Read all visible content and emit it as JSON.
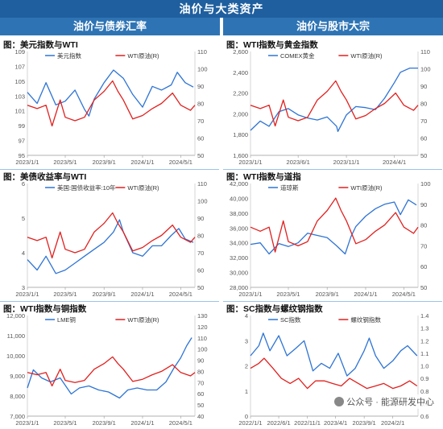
{
  "page": {
    "main_title": "油价与大类资产",
    "left_header": "油价与债券汇率",
    "right_header": "油价与股市大宗",
    "watermark": "公众号 · 能源研发中心"
  },
  "colors": {
    "blue": "#2e74d4",
    "red": "#e0201e",
    "axis": "#555555",
    "header": "#2e74b5"
  },
  "chart_data": [
    {
      "id": "usd-wti",
      "title": "图：美元指数与WTI",
      "type": "line",
      "x_ticks": [
        "2023/1/1",
        "2023/5/1",
        "2023/9/1",
        "2024/1/1",
        "2024/5/1"
      ],
      "x_range": [
        "2023-01-01",
        "2024-06-15"
      ],
      "left_axis": {
        "ticks": [
          "109",
          "107",
          "105",
          "103",
          "101",
          "99",
          "97",
          "95"
        ],
        "range": [
          95,
          109
        ]
      },
      "right_axis": {
        "ticks": [
          "110",
          "100",
          "90",
          "80",
          "70",
          "60",
          "50"
        ],
        "range": [
          50,
          110
        ]
      },
      "series": [
        {
          "name": "美元指数",
          "axis": "left",
          "color": "#2e74d4",
          "x": [
            "2023-01-01",
            "2023-02-01",
            "2023-03-01",
            "2023-04-01",
            "2023-05-01",
            "2023-06-01",
            "2023-07-01",
            "2023-07-15",
            "2023-08-01",
            "2023-09-01",
            "2023-10-01",
            "2023-11-01",
            "2023-12-01",
            "2024-01-01",
            "2024-02-01",
            "2024-03-01",
            "2024-04-01",
            "2024-04-20",
            "2024-05-15",
            "2024-06-10"
          ],
          "values": [
            103.5,
            102.0,
            104.8,
            101.8,
            102.3,
            103.8,
            101.2,
            100.3,
            102.6,
            104.8,
            106.5,
            105.4,
            103.2,
            101.5,
            104.3,
            103.8,
            104.5,
            106.2,
            104.8,
            104.2
          ]
        },
        {
          "name": "WTI原油(R)",
          "axis": "right",
          "color": "#e0201e",
          "x": [
            "2023-01-01",
            "2023-02-01",
            "2023-03-01",
            "2023-03-20",
            "2023-04-15",
            "2023-05-01",
            "2023-06-01",
            "2023-07-01",
            "2023-08-01",
            "2023-09-01",
            "2023-09-28",
            "2023-10-15",
            "2023-11-01",
            "2023-12-01",
            "2024-01-01",
            "2024-02-01",
            "2024-03-01",
            "2024-04-05",
            "2024-05-01",
            "2024-06-01",
            "2024-06-15"
          ],
          "values": [
            79,
            77,
            79,
            67,
            82,
            72,
            70,
            72,
            82,
            87,
            93,
            87,
            82,
            71,
            73,
            77,
            80,
            86,
            79,
            76,
            79
          ]
        }
      ]
    },
    {
      "id": "gold-wti",
      "title": "图：WTI指数与黄金指数",
      "type": "line",
      "x_ticks": [
        "2023/1/1",
        "2023/6/1",
        "2023/11/1",
        "2024/4/1"
      ],
      "x_range": [
        "2023-01-01",
        "2024-06-15"
      ],
      "left_axis": {
        "ticks": [
          "2,600",
          "2,400",
          "2,200",
          "2,000",
          "1,800",
          "1,600"
        ],
        "range": [
          1600,
          2600
        ]
      },
      "right_axis": {
        "ticks": [
          "110",
          "100",
          "90",
          "80",
          "70",
          "60",
          "50"
        ],
        "range": [
          50,
          110
        ]
      },
      "series": [
        {
          "name": "COMEX黄金",
          "axis": "left",
          "color": "#2e74d4",
          "x": [
            "2023-01-01",
            "2023-02-01",
            "2023-03-01",
            "2023-04-01",
            "2023-05-01",
            "2023-06-01",
            "2023-07-01",
            "2023-08-01",
            "2023-09-01",
            "2023-10-01",
            "2023-10-05",
            "2023-11-01",
            "2023-12-01",
            "2024-01-01",
            "2024-02-01",
            "2024-03-01",
            "2024-04-01",
            "2024-04-20",
            "2024-05-20",
            "2024-06-15"
          ],
          "values": [
            1840,
            1930,
            1880,
            2020,
            2050,
            1990,
            1960,
            1940,
            1970,
            1880,
            1830,
            1990,
            2070,
            2060,
            2040,
            2150,
            2300,
            2400,
            2440,
            2440
          ]
        },
        {
          "name": "WTI原油(R)",
          "axis": "right",
          "color": "#e0201e",
          "x": [
            "2023-01-01",
            "2023-02-01",
            "2023-03-01",
            "2023-03-20",
            "2023-04-15",
            "2023-05-01",
            "2023-06-01",
            "2023-07-01",
            "2023-08-01",
            "2023-09-01",
            "2023-09-28",
            "2023-10-15",
            "2023-11-01",
            "2023-12-01",
            "2024-01-01",
            "2024-02-01",
            "2024-03-01",
            "2024-04-05",
            "2024-05-01",
            "2024-06-01",
            "2024-06-15"
          ],
          "values": [
            79,
            77,
            79,
            67,
            82,
            72,
            70,
            72,
            82,
            87,
            93,
            87,
            82,
            71,
            73,
            77,
            80,
            86,
            79,
            76,
            79
          ]
        }
      ]
    },
    {
      "id": "ust-wti",
      "title": "图：美债收益率与WTI",
      "type": "line",
      "x_ticks": [
        "2023/1/1",
        "2023/5/1",
        "2023/9/1",
        "2024/1/1",
        "2024/5/1"
      ],
      "x_range": [
        "2023-01-01",
        "2024-06-15"
      ],
      "left_axis": {
        "ticks": [
          "6",
          "5",
          "4",
          "3"
        ],
        "range": [
          3,
          6
        ]
      },
      "right_axis": {
        "ticks": [
          "110",
          "100",
          "90",
          "80",
          "70",
          "60",
          "50"
        ],
        "range": [
          50,
          110
        ]
      },
      "series": [
        {
          "name": "美国:国债收益率:10年",
          "axis": "left",
          "color": "#2e74d4",
          "x": [
            "2023-01-01",
            "2023-02-01",
            "2023-03-01",
            "2023-04-01",
            "2023-05-01",
            "2023-06-01",
            "2023-07-01",
            "2023-08-01",
            "2023-09-01",
            "2023-10-01",
            "2023-10-20",
            "2023-11-01",
            "2023-12-01",
            "2024-01-01",
            "2024-02-01",
            "2024-03-01",
            "2024-04-01",
            "2024-04-25",
            "2024-05-15",
            "2024-06-10"
          ],
          "values": [
            3.8,
            3.5,
            3.9,
            3.4,
            3.5,
            3.7,
            3.9,
            4.1,
            4.3,
            4.6,
            4.95,
            4.6,
            4.0,
            3.9,
            4.2,
            4.2,
            4.5,
            4.7,
            4.4,
            4.3
          ]
        },
        {
          "name": "WTI原油(R)",
          "axis": "right",
          "color": "#e0201e",
          "x": [
            "2023-01-01",
            "2023-02-01",
            "2023-03-01",
            "2023-03-20",
            "2023-04-15",
            "2023-05-01",
            "2023-06-01",
            "2023-07-01",
            "2023-08-01",
            "2023-09-01",
            "2023-09-28",
            "2023-10-15",
            "2023-11-01",
            "2023-12-01",
            "2024-01-01",
            "2024-02-01",
            "2024-03-01",
            "2024-04-05",
            "2024-05-01",
            "2024-06-01",
            "2024-06-15"
          ],
          "values": [
            79,
            77,
            79,
            67,
            82,
            72,
            70,
            72,
            82,
            87,
            93,
            87,
            82,
            71,
            73,
            77,
            80,
            86,
            79,
            76,
            79
          ]
        }
      ]
    },
    {
      "id": "dow-wti",
      "title": "图：WTI指数与道指",
      "type": "line",
      "x_ticks": [
        "2023/1/1",
        "2023/5/1",
        "2023/9/1",
        "2024/1/1",
        "2024/5/1"
      ],
      "x_range": [
        "2023-01-01",
        "2024-06-15"
      ],
      "left_axis": {
        "ticks": [
          "42,000",
          "40,000",
          "38,000",
          "36,000",
          "34,000",
          "32,000",
          "30,000",
          "28,000"
        ],
        "range": [
          28000,
          42000
        ]
      },
      "right_axis": {
        "ticks": [
          "100",
          "90",
          "80",
          "70",
          "60",
          "50"
        ],
        "range": [
          50,
          100
        ]
      },
      "series": [
        {
          "name": "道琼斯",
          "axis": "left",
          "color": "#2e74d4",
          "x": [
            "2023-01-01",
            "2023-02-01",
            "2023-03-01",
            "2023-04-01",
            "2023-05-01",
            "2023-06-01",
            "2023-07-01",
            "2023-08-01",
            "2023-09-01",
            "2023-10-01",
            "2023-10-28",
            "2023-11-15",
            "2023-12-01",
            "2024-01-01",
            "2024-02-01",
            "2024-03-01",
            "2024-04-01",
            "2024-04-20",
            "2024-05-15",
            "2024-06-10"
          ],
          "values": [
            33800,
            34000,
            32500,
            33900,
            33500,
            34000,
            35300,
            35000,
            34700,
            33600,
            32500,
            34800,
            36200,
            37600,
            38600,
            39200,
            39500,
            37800,
            39800,
            39100
          ]
        },
        {
          "name": "WTI原油(R)",
          "axis": "right",
          "color": "#e0201e",
          "x": [
            "2023-01-01",
            "2023-02-01",
            "2023-03-01",
            "2023-03-20",
            "2023-04-15",
            "2023-05-01",
            "2023-06-01",
            "2023-07-01",
            "2023-08-01",
            "2023-09-01",
            "2023-09-28",
            "2023-10-15",
            "2023-11-01",
            "2023-12-01",
            "2024-01-01",
            "2024-02-01",
            "2024-03-01",
            "2024-04-05",
            "2024-05-01",
            "2024-06-01",
            "2024-06-15"
          ],
          "values": [
            79,
            77,
            79,
            67,
            82,
            72,
            70,
            72,
            82,
            87,
            93,
            87,
            82,
            71,
            73,
            77,
            80,
            86,
            79,
            76,
            79
          ]
        }
      ]
    },
    {
      "id": "copper-wti",
      "title": "图：WTI指数与铜指数",
      "type": "line",
      "x_ticks": [
        "2023/1/1",
        "2023/5/1",
        "2023/9/1",
        "2024/1/1",
        "2024/5/1"
      ],
      "x_range": [
        "2023-01-01",
        "2024-06-15"
      ],
      "left_axis": {
        "ticks": [
          "12,000",
          "11,000",
          "10,000",
          "9,000",
          "8,000",
          "7,000"
        ],
        "range": [
          7000,
          12000
        ]
      },
      "right_axis": {
        "ticks": [
          "130",
          "120",
          "110",
          "100",
          "90",
          "80",
          "70",
          "60",
          "50",
          "40"
        ],
        "range": [
          40,
          130
        ]
      },
      "series": [
        {
          "name": "LME铜",
          "axis": "left",
          "color": "#2e74d4",
          "x": [
            "2023-01-01",
            "2023-01-20",
            "2023-02-15",
            "2023-03-15",
            "2023-04-15",
            "2023-05-20",
            "2023-06-15",
            "2023-07-15",
            "2023-08-15",
            "2023-09-15",
            "2023-10-20",
            "2023-11-15",
            "2023-12-15",
            "2024-01-15",
            "2024-02-15",
            "2024-03-15",
            "2024-04-10",
            "2024-05-01",
            "2024-05-20",
            "2024-06-05"
          ],
          "values": [
            8400,
            9300,
            8900,
            8700,
            8900,
            8100,
            8400,
            8500,
            8300,
            8200,
            7900,
            8300,
            8400,
            8300,
            8300,
            8700,
            9400,
            9900,
            10500,
            10900
          ]
        },
        {
          "name": "WTI原油(R)",
          "axis": "right",
          "color": "#e0201e",
          "x": [
            "2023-01-01",
            "2023-02-01",
            "2023-03-01",
            "2023-03-20",
            "2023-04-15",
            "2023-05-01",
            "2023-06-01",
            "2023-07-01",
            "2023-08-01",
            "2023-09-01",
            "2023-09-28",
            "2023-10-15",
            "2023-11-01",
            "2023-12-01",
            "2024-01-01",
            "2024-02-01",
            "2024-03-01",
            "2024-04-05",
            "2024-05-01",
            "2024-06-01",
            "2024-06-15"
          ],
          "values": [
            79,
            77,
            79,
            67,
            82,
            72,
            70,
            72,
            82,
            87,
            93,
            87,
            82,
            71,
            73,
            77,
            80,
            86,
            79,
            76,
            79
          ]
        }
      ]
    },
    {
      "id": "sc-rebar",
      "title": "图：SC指数与螺纹钢指数",
      "type": "line",
      "x_ticks": [
        "2022/1/1",
        "2022/6/1",
        "2022/11/1",
        "2023/4/1",
        "2023/9/1",
        "2024/2/1"
      ],
      "x_range": [
        "2022-01-01",
        "2024-06-15"
      ],
      "left_axis": {
        "ticks": [
          "4",
          "3",
          "2",
          "1",
          "0"
        ],
        "range": [
          0,
          4
        ]
      },
      "right_axis": {
        "ticks": [
          "1.4",
          "1.3",
          "1.2",
          "1.1",
          "1.0",
          "0.9",
          "0.8",
          "0.7",
          "0.6"
        ],
        "range": [
          0.6,
          1.4
        ]
      },
      "series": [
        {
          "name": "SC指数",
          "axis": "left",
          "color": "#2e74d4",
          "x": [
            "2022-01-01",
            "2022-02-15",
            "2022-03-10",
            "2022-04-15",
            "2022-06-01",
            "2022-07-15",
            "2022-09-01",
            "2022-10-15",
            "2022-12-01",
            "2023-01-15",
            "2023-03-01",
            "2023-04-15",
            "2023-06-01",
            "2023-07-15",
            "2023-09-01",
            "2023-09-28",
            "2023-11-01",
            "2023-12-15",
            "2024-02-01",
            "2024-03-15",
            "2024-04-20",
            "2024-06-10"
          ],
          "values": [
            2.4,
            2.8,
            3.3,
            2.6,
            3.2,
            2.4,
            2.7,
            3.0,
            1.8,
            2.1,
            1.9,
            2.5,
            1.6,
            1.9,
            2.6,
            3.1,
            2.4,
            1.9,
            2.2,
            2.6,
            2.8,
            2.4
          ]
        },
        {
          "name": "螺纹钢指数",
          "axis": "right",
          "color": "#e0201e",
          "x": [
            "2022-01-01",
            "2022-02-15",
            "2022-03-15",
            "2022-05-01",
            "2022-06-15",
            "2022-08-01",
            "2022-09-15",
            "2022-11-01",
            "2022-12-15",
            "2023-02-01",
            "2023-03-15",
            "2023-05-01",
            "2023-06-15",
            "2023-08-01",
            "2023-09-15",
            "2023-11-01",
            "2023-12-15",
            "2024-02-01",
            "2024-03-15",
            "2024-05-01",
            "2024-06-10"
          ],
          "values": [
            0.98,
            1.02,
            1.06,
            0.98,
            0.9,
            0.86,
            0.9,
            0.82,
            0.88,
            0.88,
            0.86,
            0.84,
            0.9,
            0.86,
            0.82,
            0.84,
            0.86,
            0.82,
            0.84,
            0.88,
            0.84
          ]
        }
      ]
    }
  ]
}
